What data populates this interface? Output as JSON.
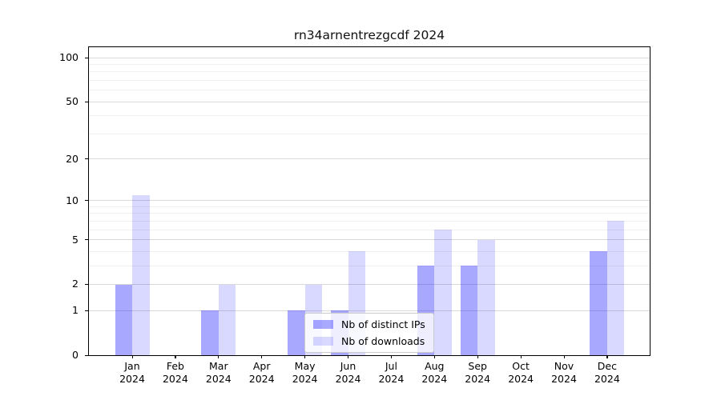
{
  "title": "rn34arnentrezgcdf 2024",
  "chart_data": {
    "type": "bar",
    "title": "rn34arnentrezgcdf 2024",
    "xlabel": "",
    "ylabel": "",
    "yscale": "log1p",
    "yticks": [
      0,
      1,
      2,
      5,
      10,
      20,
      50,
      100
    ],
    "y_minor_ticks": [
      3,
      4,
      6,
      7,
      8,
      9,
      30,
      40,
      60,
      70,
      80,
      90
    ],
    "ylim": [
      0,
      100
    ],
    "grid": "on",
    "legend_position": "lower center",
    "categories": [
      "Jan",
      "Feb",
      "Mar",
      "Apr",
      "May",
      "Jun",
      "Jul",
      "Aug",
      "Sep",
      "Oct",
      "Nov",
      "Dec"
    ],
    "category_year": "2024",
    "series": [
      {
        "name": "Nb of distinct IPs",
        "color": "rgba(0,0,255,0.34)",
        "color_hex": "#a8a8ff",
        "values": [
          2,
          0,
          1,
          0,
          1,
          1,
          0,
          3,
          3,
          0,
          0,
          4
        ]
      },
      {
        "name": "Nb of downloads",
        "color": "rgba(0,0,255,0.15)",
        "color_hex": "#d9d9ff",
        "values": [
          11,
          0,
          2,
          0,
          2,
          4,
          0,
          6,
          5,
          0,
          0,
          7
        ]
      }
    ]
  },
  "colors": {
    "grid_major": "#d9d9d9",
    "grid_minor": "#f0f0f0",
    "spine": "#000000",
    "background": "#ffffff",
    "legend_border": "#cccccc"
  }
}
